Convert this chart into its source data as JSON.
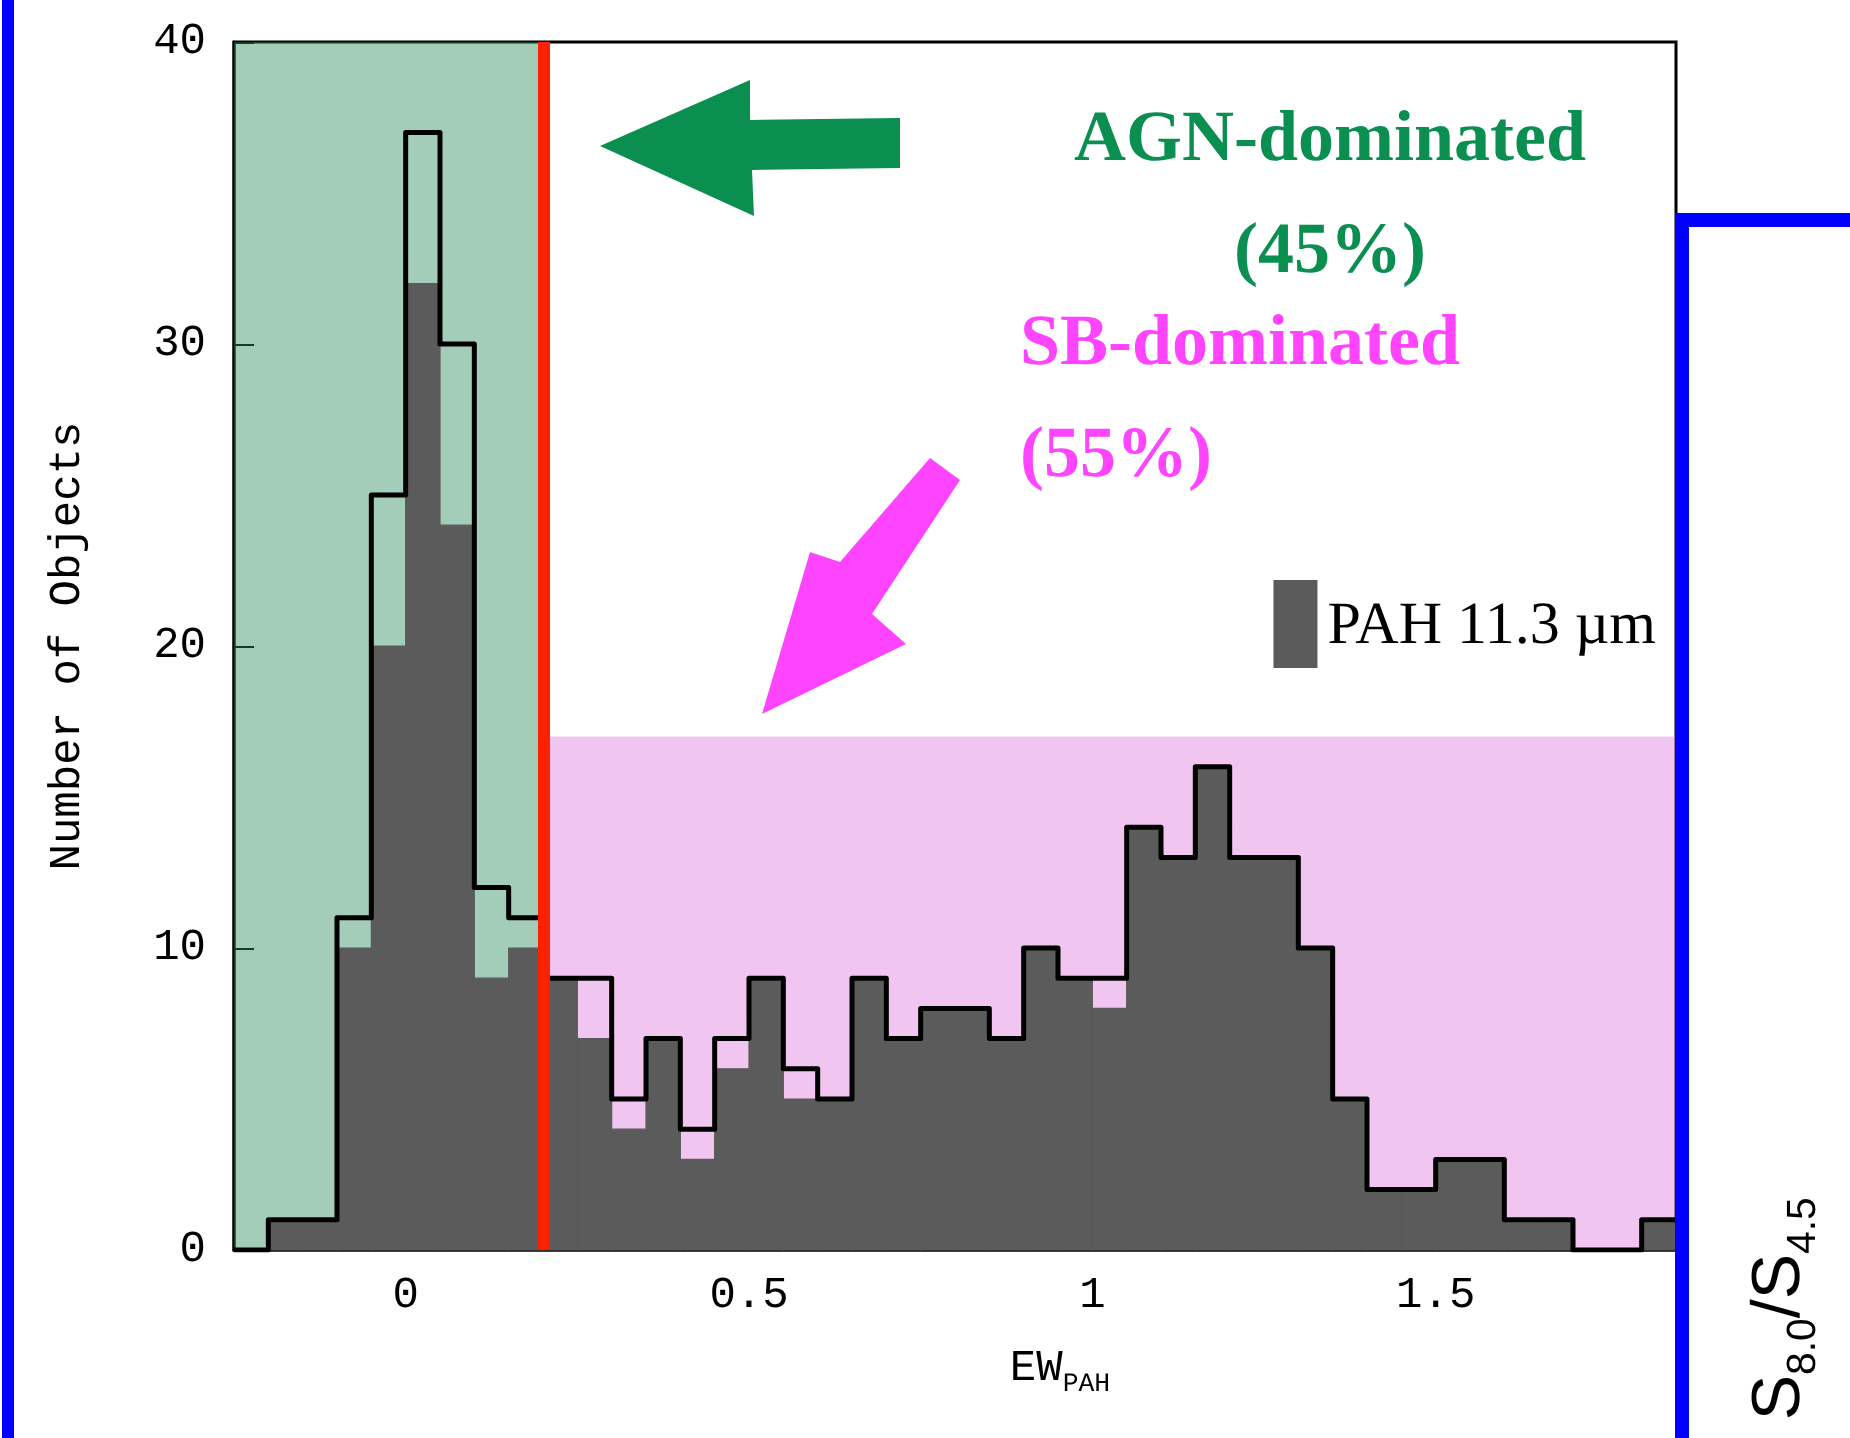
{
  "chart_data": {
    "type": "histogram",
    "xlabel": "EW$_{PAH}$",
    "ylabel": "Number of Objects",
    "bins": [
      -0.2,
      -0.15,
      -0.1,
      -0.05,
      0,
      0.05,
      0.1,
      0.15,
      0.2,
      0.25,
      0.3,
      0.35,
      0.4,
      0.45,
      0.5,
      0.55,
      0.6,
      0.65,
      0.7,
      0.75,
      0.8,
      0.85,
      0.9,
      0.95,
      1.0,
      1.05,
      1.1,
      1.15,
      1.2,
      1.25,
      1.3,
      1.35,
      1.4,
      1.45,
      1.5,
      1.55,
      1.6,
      1.65,
      1.7,
      1.75,
      1.8,
      1.85
    ],
    "series": [
      {
        "type": "step",
        "color": "#000000",
        "x": [
          -0.25,
          -0.2,
          -0.15,
          -0.1,
          -0.05,
          0,
          0.05,
          0.1,
          0.15,
          0.2,
          0.25,
          0.3,
          0.35,
          0.4,
          0.45,
          0.5,
          0.55,
          0.6,
          0.65,
          0.7,
          0.75,
          0.8,
          0.85,
          0.9,
          0.95,
          1.0,
          1.05,
          1.1,
          1.15,
          1.2,
          1.25,
          1.3,
          1.35,
          1.4,
          1.45,
          1.5,
          1.55,
          1.6,
          1.65,
          1.7,
          1.75,
          1.8,
          1.85
        ],
        "values": [
          0,
          1,
          1,
          11,
          25,
          37,
          30,
          12,
          11,
          9,
          9,
          5,
          7,
          4,
          7,
          9,
          6,
          5,
          9,
          7,
          8,
          8,
          7,
          10,
          9,
          9,
          14,
          13,
          16,
          13,
          13,
          10,
          5,
          2,
          2,
          3,
          3,
          1,
          1,
          0,
          0,
          1,
          1
        ]
      },
      {
        "name": "PAH 11.3 µm",
        "color": "#5b5b5b",
        "values": [
          1,
          1,
          10,
          20,
          32,
          24,
          9,
          10,
          9,
          7,
          4,
          7,
          3,
          6,
          9,
          5,
          5,
          9,
          7,
          8,
          8,
          7,
          10,
          9,
          8,
          14,
          13,
          16,
          13,
          13,
          10,
          5,
          2,
          2,
          3,
          3,
          1,
          1,
          0,
          0,
          1
        ]
      }
    ],
    "xlim": [
      -0.25,
      1.85
    ],
    "xticks": [
      0,
      0.5,
      1,
      1.5
    ],
    "ylim": [
      0,
      40
    ],
    "yticks": [
      0,
      10,
      20,
      30,
      40
    ],
    "bands": [
      {
        "axis": "x",
        "from": -0.25,
        "to": 0.2,
        "color": "#2e8d60"
      },
      {
        "axis": "y",
        "from": 0,
        "to": 17,
        "color": "#d663d6"
      }
    ],
    "ref_lines": [
      {
        "axis": "x",
        "value": 0.2,
        "color": "#ff2200"
      }
    ],
    "annotations": [
      "AGN-dominated (45%)",
      "SB-dominated (55%)",
      "S$_{8.0}$/S$_{4.5}$"
    ],
    "legend": "top right"
  }
}
